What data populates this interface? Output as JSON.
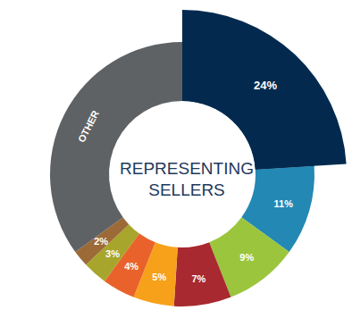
{
  "chart_data": {
    "type": "pie",
    "title": "REPRESENTING SELLERS",
    "categories": [
      null,
      null,
      null,
      null,
      null,
      null,
      null,
      null,
      "OTHER"
    ],
    "values": [
      24,
      11,
      9,
      7,
      5,
      4,
      3,
      2,
      35
    ],
    "value_labels": [
      "24%",
      "11%",
      "9%",
      "7%",
      "5%",
      "4%",
      "3%",
      "2%",
      null
    ],
    "colors": [
      "#032a4e",
      "#2388b4",
      "#9bc53d",
      "#a8292f",
      "#f7a11a",
      "#e9622b",
      "#a8a52c",
      "#9b6a37",
      "#5f6265"
    ],
    "data_labels": true
  }
}
